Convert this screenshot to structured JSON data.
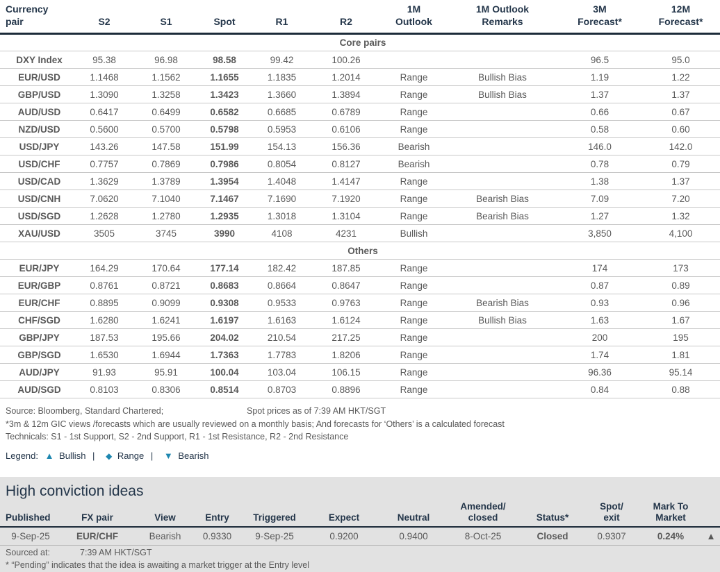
{
  "colors": {
    "navy": "#24364a",
    "body_gray": "#595959",
    "outlook_range": "#f9a913",
    "outlook_bearish": "#fa0000",
    "outlook_bullish": "#00a3b4",
    "legend_icon": "#1e87b0",
    "mark_to_market_up": "#00a34a",
    "section_background": "#e2e2e2"
  },
  "main_table": {
    "columns": [
      "Currency\npair",
      "S2",
      "S1",
      "Spot",
      "R1",
      "R2",
      "1M\nOutlook",
      "1M Outlook\nRemarks",
      "3M\nForecast*",
      "12M\nForecast*"
    ],
    "sections": [
      {
        "label": "Core pairs",
        "rows": [
          {
            "pair": "DXY Index",
            "s2": "95.38",
            "s1": "96.98",
            "spot": "98.58",
            "r1": "99.42",
            "r2": "100.26",
            "outlook": "",
            "remarks": "",
            "f3m": "96.5",
            "f12m": "95.0"
          },
          {
            "pair": "EUR/USD",
            "s2": "1.1468",
            "s1": "1.1562",
            "spot": "1.1655",
            "r1": "1.1835",
            "r2": "1.2014",
            "outlook": "Range",
            "remarks": "Bullish Bias",
            "f3m": "1.19",
            "f12m": "1.22"
          },
          {
            "pair": "GBP/USD",
            "s2": "1.3090",
            "s1": "1.3258",
            "spot": "1.3423",
            "r1": "1.3660",
            "r2": "1.3894",
            "outlook": "Range",
            "remarks": "Bullish Bias",
            "f3m": "1.37",
            "f12m": "1.37"
          },
          {
            "pair": "AUD/USD",
            "s2": "0.6417",
            "s1": "0.6499",
            "spot": "0.6582",
            "r1": "0.6685",
            "r2": "0.6789",
            "outlook": "Range",
            "remarks": "",
            "f3m": "0.66",
            "f12m": "0.67"
          },
          {
            "pair": "NZD/USD",
            "s2": "0.5600",
            "s1": "0.5700",
            "spot": "0.5798",
            "r1": "0.5953",
            "r2": "0.6106",
            "outlook": "Range",
            "remarks": "",
            "f3m": "0.58",
            "f12m": "0.60"
          },
          {
            "pair": "USD/JPY",
            "s2": "143.26",
            "s1": "147.58",
            "spot": "151.99",
            "r1": "154.13",
            "r2": "156.36",
            "outlook": "Bearish",
            "remarks": "",
            "f3m": "146.0",
            "f12m": "142.0"
          },
          {
            "pair": "USD/CHF",
            "s2": "0.7757",
            "s1": "0.7869",
            "spot": "0.7986",
            "r1": "0.8054",
            "r2": "0.8127",
            "outlook": "Bearish",
            "remarks": "",
            "f3m": "0.78",
            "f12m": "0.79"
          },
          {
            "pair": "USD/CAD",
            "s2": "1.3629",
            "s1": "1.3789",
            "spot": "1.3954",
            "r1": "1.4048",
            "r2": "1.4147",
            "outlook": "Range",
            "remarks": "",
            "f3m": "1.38",
            "f12m": "1.37"
          },
          {
            "pair": "USD/CNH",
            "s2": "7.0620",
            "s1": "7.1040",
            "spot": "7.1467",
            "r1": "7.1690",
            "r2": "7.1920",
            "outlook": "Range",
            "remarks": "Bearish Bias",
            "f3m": "7.09",
            "f12m": "7.20"
          },
          {
            "pair": "USD/SGD",
            "s2": "1.2628",
            "s1": "1.2780",
            "spot": "1.2935",
            "r1": "1.3018",
            "r2": "1.3104",
            "outlook": "Range",
            "remarks": "Bearish Bias",
            "f3m": "1.27",
            "f12m": "1.32"
          },
          {
            "pair": "XAU/USD",
            "s2": "3505",
            "s1": "3745",
            "spot": "3990",
            "r1": "4108",
            "r2": "4231",
            "outlook": "Bullish",
            "remarks": "",
            "f3m": "3,850",
            "f12m": "4,100"
          }
        ]
      },
      {
        "label": "Others",
        "rows": [
          {
            "pair": "EUR/JPY",
            "s2": "164.29",
            "s1": "170.64",
            "spot": "177.14",
            "r1": "182.42",
            "r2": "187.85",
            "outlook": "Range",
            "remarks": "",
            "f3m": "174",
            "f12m": "173"
          },
          {
            "pair": "EUR/GBP",
            "s2": "0.8761",
            "s1": "0.8721",
            "spot": "0.8683",
            "r1": "0.8664",
            "r2": "0.8647",
            "outlook": "Range",
            "remarks": "",
            "f3m": "0.87",
            "f12m": "0.89"
          },
          {
            "pair": "EUR/CHF",
            "s2": "0.8895",
            "s1": "0.9099",
            "spot": "0.9308",
            "r1": "0.9533",
            "r2": "0.9763",
            "outlook": "Range",
            "remarks": "Bearish Bias",
            "f3m": "0.93",
            "f12m": "0.96"
          },
          {
            "pair": "CHF/SGD",
            "s2": "1.6280",
            "s1": "1.6241",
            "spot": "1.6197",
            "r1": "1.6163",
            "r2": "1.6124",
            "outlook": "Range",
            "remarks": "Bullish Bias",
            "f3m": "1.63",
            "f12m": "1.67"
          },
          {
            "pair": "GBP/JPY",
            "s2": "187.53",
            "s1": "195.66",
            "spot": "204.02",
            "r1": "210.54",
            "r2": "217.25",
            "outlook": "Range",
            "remarks": "",
            "f3m": "200",
            "f12m": "195"
          },
          {
            "pair": "GBP/SGD",
            "s2": "1.6530",
            "s1": "1.6944",
            "spot": "1.7363",
            "r1": "1.7783",
            "r2": "1.8206",
            "outlook": "Range",
            "remarks": "",
            "f3m": "1.74",
            "f12m": "1.81"
          },
          {
            "pair": "AUD/JPY",
            "s2": "91.93",
            "s1": "95.91",
            "spot": "100.04",
            "r1": "103.04",
            "r2": "106.15",
            "outlook": "Range",
            "remarks": "",
            "f3m": "96.36",
            "f12m": "95.14"
          },
          {
            "pair": "AUD/SGD",
            "s2": "0.8103",
            "s1": "0.8306",
            "spot": "0.8514",
            "r1": "0.8703",
            "r2": "0.8896",
            "outlook": "Range",
            "remarks": "",
            "f3m": "0.84",
            "f12m": "0.88"
          }
        ]
      }
    ]
  },
  "footnotes": {
    "source_left": "Source: Bloomberg, Standard Chartered;",
    "source_right": "Spot prices as of 7:39 AM HKT/SGT",
    "note1": "*3m & 12m GIC views /forecasts which are usually reviewed on a monthly basis; And forecasts for ‘Others’ is a calculated forecast",
    "note2": "Technicals: S1 - 1st Support, S2 - 2nd Support, R1 - 1st Resistance, R2 - 2nd Resistance"
  },
  "legend": {
    "label": "Legend:",
    "separator": "|",
    "items": [
      {
        "icon": "▲",
        "label": "Bullish"
      },
      {
        "icon": "◆",
        "label": "Range"
      },
      {
        "icon": "▼",
        "label": "Bearish"
      }
    ]
  },
  "high_conviction": {
    "title": "High conviction ideas",
    "columns": [
      "Published",
      "FX pair",
      "View",
      "Entry",
      "Triggered",
      "Expect",
      "Neutral",
      "Amended/\nclosed",
      "Status*",
      "Spot/\nexit",
      "Mark To\nMarket",
      ""
    ],
    "row": {
      "published": "9-Sep-25",
      "fx_pair": "EUR/CHF",
      "view": "Bearish",
      "entry": "0.9330",
      "triggered": "9-Sep-25",
      "expect": "0.9200",
      "neutral": "0.9400",
      "amended_closed": "8-Oct-25",
      "status": "Closed",
      "spot_exit": "0.9307",
      "mark_to_market": "0.24%",
      "mtm_direction_icon": "▲"
    },
    "sourced_at_label": "Sourced at:",
    "sourced_at_value": "7:39 AM HKT/SGT",
    "pending_note": "* “Pending” indicates that the idea is awaiting a market trigger at the Entry level"
  }
}
